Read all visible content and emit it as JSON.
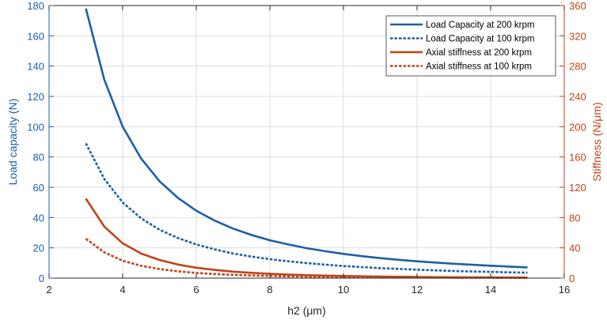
{
  "chart_data": {
    "type": "line",
    "xlabel": "h2 (μm)",
    "ylabel_left": "Load capacity (N)",
    "ylabel_right": "Stiffness (N/μm)",
    "xlim": [
      2,
      16
    ],
    "ylim_left": [
      0,
      180
    ],
    "ylim_right": [
      0,
      360
    ],
    "x_ticks": [
      2,
      4,
      6,
      8,
      10,
      12,
      14,
      16
    ],
    "y_ticks_left": [
      0,
      20,
      40,
      60,
      80,
      100,
      120,
      140,
      160,
      180
    ],
    "y_ticks_right": [
      0,
      40,
      80,
      120,
      160,
      200,
      240,
      280,
      320,
      360
    ],
    "grid": true,
    "legend_position": "top-right",
    "colors": {
      "left_axis": "#1f5fa6",
      "right_axis": "#c0441a",
      "grid": "#dcdcdc"
    },
    "series": [
      {
        "name": "Load Capacity at 200 krpm",
        "axis": "left",
        "color": "#1f5fa6",
        "style": "solid",
        "x": [
          3,
          3.5,
          4,
          4.5,
          5,
          5.5,
          6,
          6.5,
          7,
          7.5,
          8,
          8.5,
          9,
          9.5,
          10,
          10.5,
          11,
          11.5,
          12,
          12.5,
          13,
          13.5,
          14,
          14.5,
          15
        ],
        "y": [
          178,
          131,
          100,
          79,
          64,
          53,
          44.5,
          38,
          32.7,
          28.5,
          25,
          22.2,
          19.8,
          17.8,
          16,
          14.5,
          13.2,
          12.1,
          11.1,
          10.3,
          9.5,
          8.8,
          8.2,
          7.6,
          7.1
        ]
      },
      {
        "name": "Load Capacity at 100 krpm",
        "axis": "left",
        "color": "#1f5fa6",
        "style": "dotted",
        "x": [
          3,
          3.5,
          4,
          4.5,
          5,
          5.5,
          6,
          6.5,
          7,
          7.5,
          8,
          8.5,
          9,
          9.5,
          10,
          10.5,
          11,
          11.5,
          12,
          12.5,
          13,
          13.5,
          14,
          14.5,
          15
        ],
        "y": [
          89,
          65.5,
          50,
          39.5,
          32,
          26.5,
          22.2,
          19,
          16.3,
          14.2,
          12.5,
          11.1,
          9.9,
          8.9,
          8,
          7.3,
          6.6,
          6.1,
          5.6,
          5.1,
          4.7,
          4.4,
          4.1,
          3.8,
          3.6
        ]
      },
      {
        "name": "Axial stiffness at 200 krpm",
        "axis": "right",
        "color": "#c0441a",
        "style": "solid",
        "x": [
          3,
          3.5,
          4,
          4.5,
          5,
          5.5,
          6,
          6.5,
          7,
          7.5,
          8,
          8.5,
          9,
          9.5,
          10,
          10.5,
          11,
          11.5,
          12,
          12.5,
          13,
          13.5,
          14,
          14.5,
          15
        ],
        "y": [
          105,
          68,
          46,
          32.5,
          24,
          18,
          13.8,
          10.8,
          8.6,
          7,
          5.7,
          4.7,
          3.9,
          3.3,
          2.8,
          2.4,
          2,
          1.8,
          1.5,
          1.3,
          1.2,
          1.0,
          0.9,
          0.8,
          0.7
        ]
      },
      {
        "name": "Axial stiffness at 100 krpm",
        "axis": "right",
        "color": "#c0441a",
        "style": "dotted",
        "x": [
          3,
          3.5,
          4,
          4.5,
          5,
          5.5,
          6,
          6.5,
          7,
          7.5,
          8,
          8.5,
          9,
          9.5,
          10,
          10.5,
          11,
          11.5,
          12,
          12.5,
          13,
          13.5,
          14,
          14.5,
          15
        ],
        "y": [
          52,
          34,
          23,
          16.3,
          12,
          9,
          6.9,
          5.4,
          4.3,
          3.5,
          2.8,
          2.3,
          2,
          1.7,
          1.4,
          1.2,
          1.0,
          0.9,
          0.8,
          0.7,
          0.6,
          0.5,
          0.5,
          0.4,
          0.4
        ]
      }
    ]
  }
}
